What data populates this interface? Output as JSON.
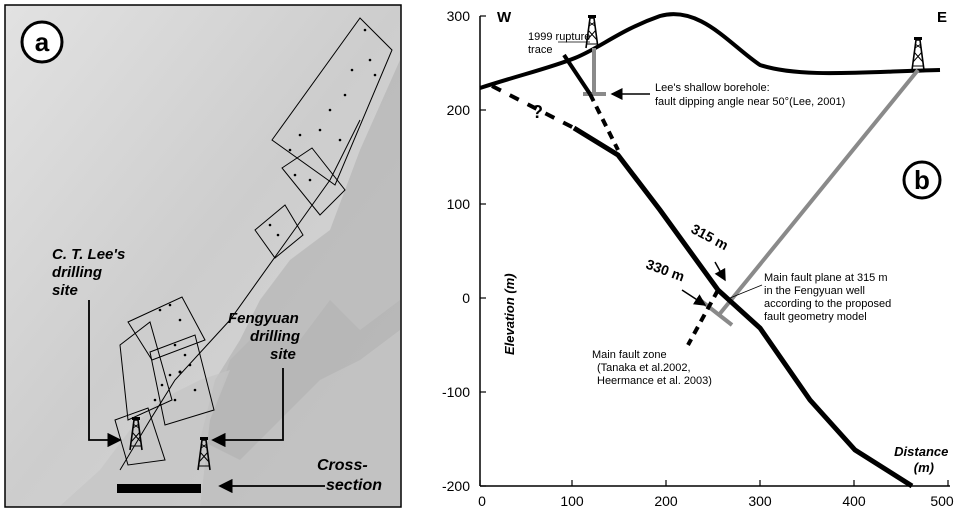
{
  "panel_a": {
    "badge": "a",
    "label_lee": [
      "C. T. Lee's",
      "drilling",
      "site"
    ],
    "label_feng": [
      "Fengyuan",
      "drilling",
      "site"
    ],
    "label_cross": [
      "Cross-",
      "section"
    ]
  },
  "panel_b": {
    "badge": "b",
    "west": "W",
    "east": "E",
    "y_axis_label": "Elevation (m)",
    "x_axis_label": [
      "Distance",
      "(m)"
    ],
    "y_ticks": [
      "300",
      "200",
      "100",
      "0",
      "-100",
      "-200"
    ],
    "x_ticks": [
      "0",
      "100",
      "200",
      "300",
      "400",
      "500"
    ],
    "rupture_label": [
      "1999 rupture",
      "trace"
    ],
    "lee_borehole_label": [
      "Lee's shallow borehole:",
      "fault dipping angle near 50°(Lee, 2001)"
    ],
    "question_mark": "?",
    "depth_315": "315 m",
    "depth_330": "330 m",
    "main_fault_plane_label": [
      "Main fault plane at 315 m",
      "in the Fengyuan well",
      "according to the proposed",
      "fault geometry model"
    ],
    "main_fault_zone_label": [
      "Main fault zone",
      "(Tanaka et al.2002,",
      "Heermance et al. 2003)"
    ]
  },
  "colors": {
    "fault": "#000000",
    "well": "#8a8a8a",
    "terrain": "#cfcfcf"
  }
}
